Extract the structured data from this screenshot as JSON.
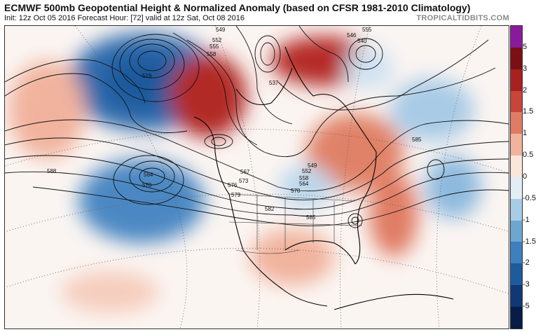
{
  "header": {
    "title": "ECMWF 500mb Geopotential Height & Normalized Anomaly (based on CFSR 1981-2010 Climatology)",
    "subtitle": "Init: 12z Oct 05 2016   Forecast Hour: [72]   valid at 12z Sat, Oct 08 2016",
    "brand": "TROPICALTIDBITS.COM"
  },
  "colorbar": {
    "labels": [
      "5",
      "3",
      "2",
      "1.5",
      "1",
      "0.5",
      "0",
      "-0.5",
      "-1",
      "-1.5",
      "-2",
      "-3",
      "-5"
    ],
    "colors": [
      "#8a1a9c",
      "#7a0f15",
      "#a8201f",
      "#c8453a",
      "#e07c63",
      "#f1b39d",
      "#fbe6dc",
      "#e2eef6",
      "#a8cbe6",
      "#6ea6d2",
      "#3f7fbd",
      "#1f5a9d",
      "#0f3874",
      "#071c46"
    ]
  },
  "contour_labels": [
    "549",
    "552",
    "555",
    "558",
    "519",
    "546",
    "540",
    "555",
    "537",
    "564",
    "570",
    "567",
    "573",
    "576",
    "579",
    "549",
    "552",
    "558",
    "564",
    "570",
    "582",
    "585",
    "585",
    "588"
  ]
}
